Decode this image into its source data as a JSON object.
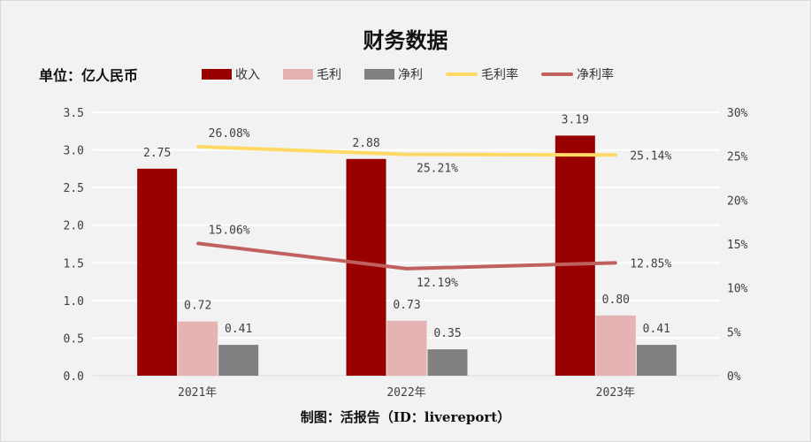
{
  "chart_data": {
    "type": "bar",
    "title": "财务数据",
    "unit_label": "单位：亿人民币",
    "footer": "制图：活报告（ID：livereport）",
    "categories": [
      "2021年",
      "2022年",
      "2023年"
    ],
    "series": [
      {
        "name": "收入",
        "type": "bar",
        "axis": "left",
        "color": "#990000",
        "values": [
          2.75,
          2.88,
          3.19
        ],
        "labels": [
          "2.75",
          "2.88",
          "3.19"
        ]
      },
      {
        "name": "毛利",
        "type": "bar",
        "axis": "left",
        "color": "#e6b3b3",
        "values": [
          0.72,
          0.73,
          0.8
        ],
        "labels": [
          "0.72",
          "0.73",
          "0.80"
        ]
      },
      {
        "name": "净利",
        "type": "bar",
        "axis": "left",
        "color": "#808080",
        "values": [
          0.41,
          0.35,
          0.41
        ],
        "labels": [
          "0.41",
          "0.35",
          "0.41"
        ]
      },
      {
        "name": "毛利率",
        "type": "line",
        "axis": "right",
        "color": "#ffd966",
        "values": [
          26.08,
          25.21,
          25.14
        ],
        "labels": [
          "26.08%",
          "25.21%",
          "25.14%"
        ]
      },
      {
        "name": "净利率",
        "type": "line",
        "axis": "right",
        "color": "#c0605f",
        "values": [
          15.06,
          12.19,
          12.85
        ],
        "labels": [
          "15.06%",
          "12.19%",
          "12.85%"
        ]
      }
    ],
    "y_left": {
      "min": 0,
      "max": 3.5,
      "ticks": [
        "0.0",
        "0.5",
        "1.0",
        "1.5",
        "2.0",
        "2.5",
        "3.0",
        "3.5"
      ]
    },
    "y_right": {
      "min": 0,
      "max": 30,
      "ticks": [
        "0%",
        "5%",
        "10%",
        "15%",
        "20%",
        "25%",
        "30%"
      ]
    },
    "grid": true,
    "legend_position": "top"
  }
}
